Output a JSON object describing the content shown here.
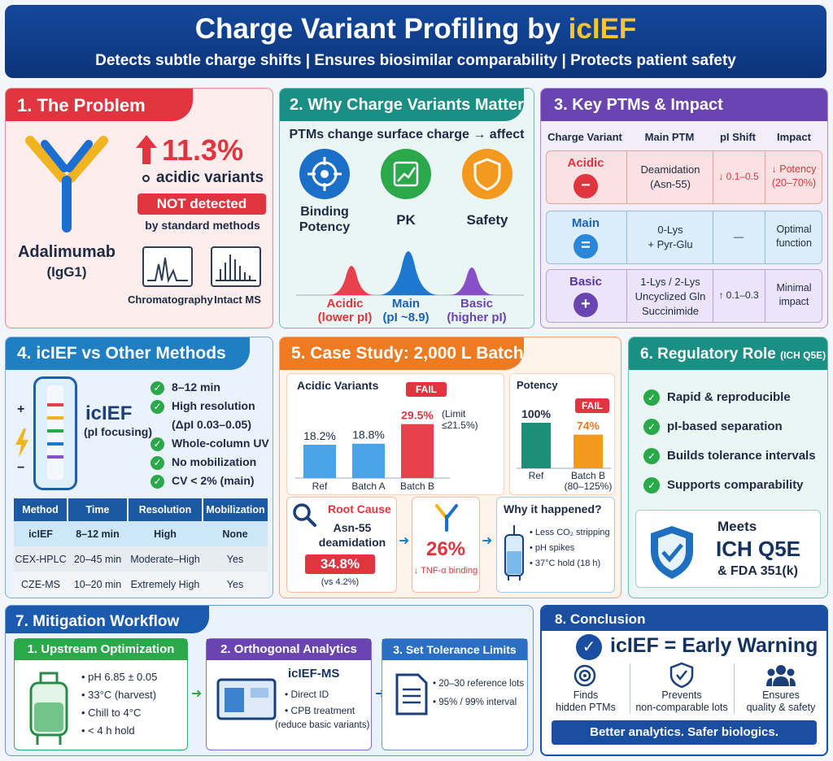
{
  "header": {
    "title_main": "Charge Variant Profiling  by ",
    "title_accent": "icIEF",
    "subtitle": "Detects subtle charge shifts   |   Ensures biosimilar comparability   |   Protects patient safety"
  },
  "p1": {
    "title": "1. The Problem",
    "stat": "11.3%",
    "stat_label": "acidic variants",
    "not_detected": "NOT detected",
    "by_methods": "by standard methods",
    "mab": "Adalimumab",
    "mab_sub": "(IgG1)",
    "m1": "Chromatography",
    "m2": "Intact MS"
  },
  "p2": {
    "title": "2. Why Charge Variants Matter",
    "sub": "PTMs change surface charge → affect",
    "i1": "Binding",
    "i1b": "Potency",
    "i2": "PK",
    "i3": "Safety",
    "pk1": "Acidic",
    "pk1s": "(lower pI)",
    "pk2": "Main",
    "pk2s": "(pI ~8.9)",
    "pk3": "Basic",
    "pk3s": "(higher pI)"
  },
  "p3": {
    "title": "3. Key PTMs & Impact",
    "headers": [
      "Charge Variant",
      "Main PTM",
      "pI Shift",
      "Impact"
    ],
    "rows": [
      {
        "v": "Acidic",
        "sym": "−",
        "ptm1": "Deamidation",
        "ptm2": "(Asn-55)",
        "ptm3": "",
        "shift": "↓ 0.1–0.5",
        "imp1": "↓ Potency",
        "imp2": "(20–70%)"
      },
      {
        "v": "Main",
        "sym": "=",
        "ptm1": "0-Lys",
        "ptm2": "+ Pyr-Glu",
        "ptm3": "",
        "shift": "—",
        "imp1": "Optimal",
        "imp2": "function"
      },
      {
        "v": "Basic",
        "sym": "+",
        "ptm1": "1-Lys / 2-Lys",
        "ptm2": "Uncyclized Gln",
        "ptm3": "Succinimide",
        "shift": "↑ 0.1–0.3",
        "imp1": "Minimal",
        "imp2": "impact"
      }
    ]
  },
  "p4": {
    "title": "4. icIEF vs Other Methods",
    "name": "icIEF",
    "name_sub": "(pI focusing)",
    "plus": "+",
    "minus": "−",
    "checks": [
      "8–12 min",
      "High resolution",
      "(ΔpI 0.03–0.05)",
      "Whole-column UV",
      "No mobilization",
      "CV < 2% (main)"
    ],
    "headers": [
      "Method",
      "Time",
      "Resolution",
      "Mobilization"
    ],
    "rows": [
      [
        "icIEF",
        "8–12 min",
        "High",
        "None"
      ],
      [
        "CEX-HPLC",
        "20–45 min",
        "Moderate–High",
        "Yes"
      ],
      [
        "CZE-MS",
        "10–20 min",
        "Extremely High",
        "Yes"
      ]
    ]
  },
  "p5": {
    "title": "5. Case Study: 2,000 L Batch",
    "acidic_title": "Acidic Variants",
    "fail": "FAIL",
    "limit": "(Limit ≤21.5%)",
    "potency_title": "Potency",
    "fail2": "FAIL",
    "rc_title": "Root Cause",
    "rc1": "Asn-55",
    "rc2": "deamidation",
    "rc_val": "34.8%",
    "rc_vs": "(vs 4.2%)",
    "tnf_val": "26%",
    "tnf_label": "↓ TNF-α binding",
    "why_title": "Why it happened?",
    "why": [
      "Less CO₂ stripping",
      "pH spikes",
      "37°C hold (18 h)"
    ]
  },
  "p6": {
    "title": "6. Regulatory Role",
    "title_sub": "(ICH Q5E)",
    "checks": [
      "Rapid & reproducible",
      "pI-based separation",
      "Builds tolerance intervals",
      "Supports comparability"
    ],
    "meets": "Meets",
    "ich": "ICH Q5E",
    "fda": "& FDA 351(k)"
  },
  "p7": {
    "title": "7. Mitigation Workflow",
    "s1": {
      "title": "1. Upstream Optimization",
      "items": [
        "pH 6.85 ± 0.05",
        "33°C (harvest)",
        "Chill to 4°C",
        "< 4 h hold"
      ]
    },
    "s2": {
      "title": "2. Orthogonal Analytics",
      "name": "icIEF-MS",
      "items": [
        "Direct ID",
        "CPB treatment"
      ],
      "note": "(reduce basic variants)"
    },
    "s3": {
      "title": "3. Set Tolerance Limits",
      "items": [
        "20–30 reference lots",
        "95% / 99% interval"
      ]
    }
  },
  "p8": {
    "title": "8. Conclusion",
    "main": "icIEF = Early Warning",
    "c1a": "Finds",
    "c1b": "hidden PTMs",
    "c2a": "Prevents",
    "c2b": "non-comparable lots",
    "c3a": "Ensures",
    "c3b": "quality & safety",
    "footer": "Better analytics. Safer biologics."
  },
  "colors": {
    "navy": "#0e3d8c",
    "red": "#e0353f",
    "teal": "#1a8f84",
    "purple": "#6a45b2",
    "blue": "#1f7fc2",
    "orange": "#ee7a22",
    "green": "#2aa84a"
  },
  "chart_data": [
    {
      "type": "bar",
      "title": "Acidic Variants",
      "categories": [
        "Ref",
        "Batch A",
        "Batch B"
      ],
      "values": [
        18.2,
        18.8,
        29.5
      ],
      "labels": [
        "18.2%",
        "18.8%",
        "29.5%"
      ],
      "limit": 21.5
    },
    {
      "type": "bar",
      "title": "Potency",
      "categories": [
        "Ref",
        "Batch B\n(80–125%)"
      ],
      "values": [
        100,
        74
      ],
      "labels": [
        "100%",
        "74%"
      ]
    }
  ]
}
